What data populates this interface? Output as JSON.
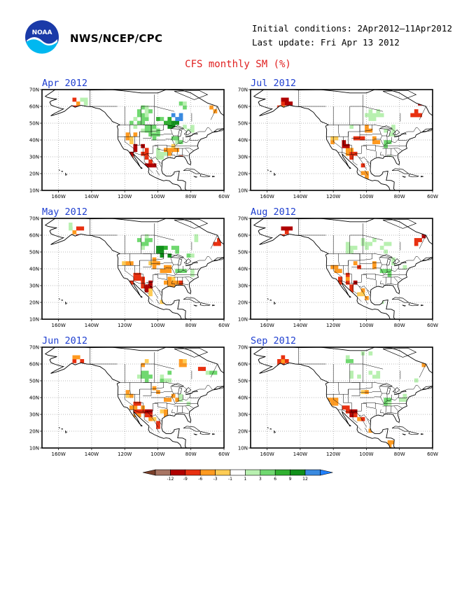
{
  "header": {
    "org": "NWS/NCEP/CPC",
    "initial_conditions": "Initial conditions: 2Apr2012–11Apr2012",
    "last_update": "Last update: Fri Apr 13 2012",
    "title": "CFS monthly SM (%)"
  },
  "logo": {
    "text": "NOAA",
    "icon": "noaa-logo"
  },
  "map": {
    "region": "North America",
    "lat_labels": [
      "70N",
      "60N",
      "50N",
      "40N",
      "30N",
      "20N",
      "10N"
    ],
    "lon_labels": [
      "160W",
      "140W",
      "120W",
      "100W",
      "80W",
      "60W"
    ]
  },
  "panels": [
    {
      "title": "Apr 2012"
    },
    {
      "title": "Jul 2012"
    },
    {
      "title": "May 2012"
    },
    {
      "title": "Aug 2012"
    },
    {
      "title": "Jun 2012"
    },
    {
      "title": "Sep 2012"
    }
  ],
  "colorbar": {
    "labels": [
      "-12",
      "-9",
      "-6",
      "-3",
      "-1",
      "1",
      "3",
      "6",
      "9",
      "12"
    ],
    "colors": [
      "#7a3f2a",
      "#a87564",
      "#b00000",
      "#e83010",
      "#ff9a20",
      "#ffcc55",
      "#ffffff",
      "#b8f0b0",
      "#70d870",
      "#30b030",
      "#10901a",
      "#3a8ae0",
      "#2080ff"
    ]
  }
}
